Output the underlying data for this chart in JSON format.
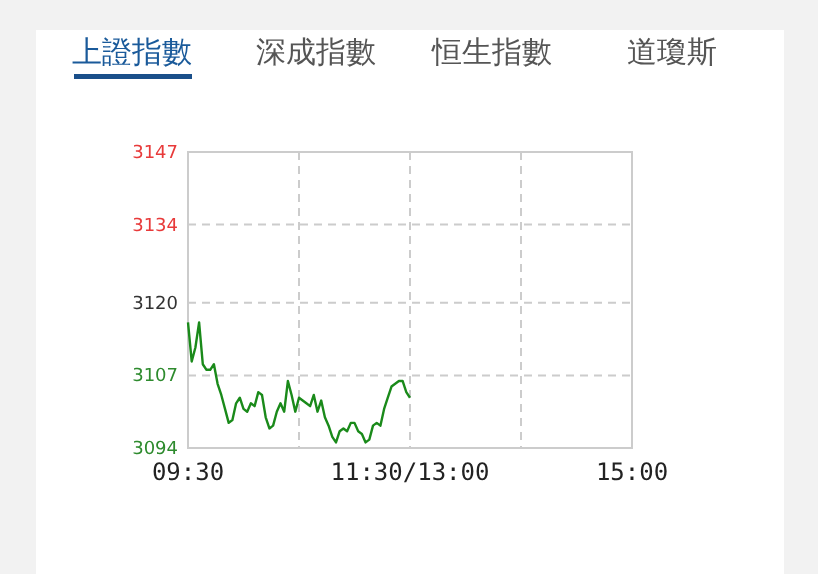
{
  "chart_data": {
    "type": "line",
    "title": "上證指數",
    "annotations": [
      "深成指數",
      "恒生指數",
      "道瓊斯"
    ],
    "categories": [
      "09:30",
      null,
      null,
      null,
      null,
      null,
      null,
      null,
      null,
      null,
      null,
      null,
      null,
      null,
      null,
      null,
      null,
      null,
      null,
      null,
      null,
      null,
      null,
      null,
      null,
      null,
      null,
      null,
      null,
      null,
      null,
      null,
      null,
      null,
      null,
      null,
      null,
      null,
      null,
      null,
      null,
      null,
      null,
      null,
      null,
      null,
      null,
      null,
      null,
      null,
      null,
      null,
      null,
      null,
      null,
      null,
      null,
      null,
      null,
      null,
      "11:30/13:00",
      null,
      null,
      null,
      null,
      null,
      null,
      null,
      null,
      null,
      null,
      null,
      null,
      null,
      null,
      null,
      null,
      null,
      null,
      null,
      null,
      null,
      null,
      null,
      null,
      null,
      null,
      null,
      null,
      null,
      null,
      null,
      null,
      null,
      null,
      null,
      null,
      null,
      null,
      null,
      null,
      null,
      null,
      null,
      null,
      null,
      null,
      null,
      null,
      null,
      null,
      null,
      null,
      null,
      null,
      null,
      null,
      null,
      null,
      null,
      "15:00"
    ],
    "series": [
      {
        "color": "#1a8a1a",
        "values": [
          3116.5,
          3109.5,
          3112,
          3116.5,
          3109,
          3108,
          3108,
          3109,
          3105.5,
          3103.5,
          3101,
          3098.5,
          3099,
          3102,
          3103,
          3101,
          3100.5,
          3102,
          3101.5,
          3104,
          3103.5,
          3099.5,
          3097.5,
          3098,
          3100.5,
          3102,
          3100.5,
          3106,
          3103.5,
          3100.5,
          3103,
          3102.5,
          3102,
          3101.5,
          3103.5,
          3100.5,
          3102.5,
          3099.5,
          3098,
          3096,
          3095,
          3097,
          3097.5,
          3097,
          3098.5,
          3098.5,
          3097,
          3096.5,
          3095,
          3095.5,
          3098,
          3098.5,
          3098,
          3101,
          3103,
          3105,
          3105.5,
          3106,
          3106,
          3104,
          3103,
          null,
          null,
          null,
          null,
          null,
          null,
          null,
          null,
          null,
          null,
          null,
          null,
          null,
          null,
          null,
          null,
          null,
          null,
          null,
          null,
          null,
          null,
          null,
          null,
          null,
          null,
          null,
          null,
          null,
          null,
          null,
          null,
          null,
          null,
          null,
          null,
          null,
          null,
          null,
          null,
          null,
          null,
          null,
          null,
          null,
          null,
          null,
          null,
          null,
          null,
          null,
          null,
          null,
          null,
          null,
          null,
          null,
          null,
          null,
          null
        ]
      }
    ],
    "ylim": [
      3094,
      3147
    ],
    "yticks": [
      3094,
      3107,
      3120,
      3134,
      3147
    ],
    "grid": true
  }
}
